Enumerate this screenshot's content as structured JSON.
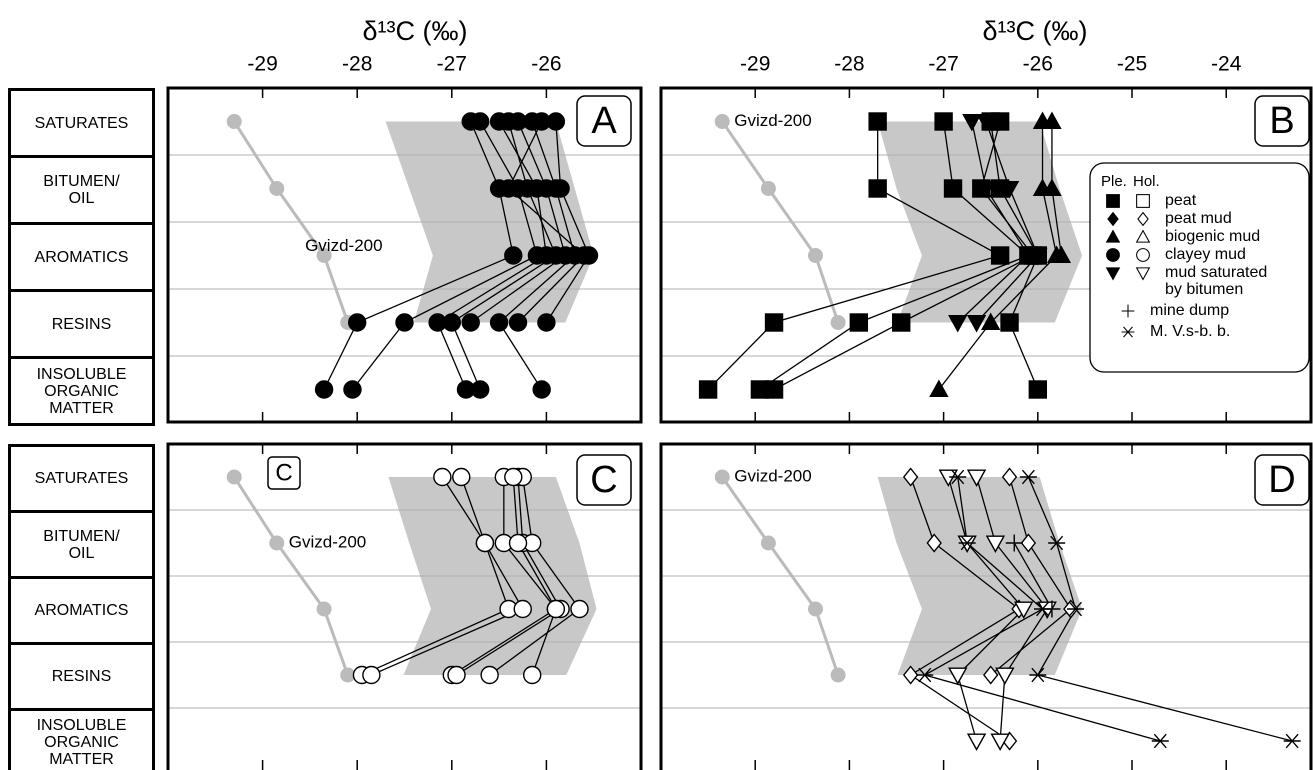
{
  "chart_data": [
    {
      "type": "profile",
      "xlabel": "δ¹³C (‰)",
      "panel_label": "A",
      "grid": true,
      "tick_labels": true,
      "categories": [
        "SATURATES",
        "BITUMEN/\nOIL",
        "AROMATICS",
        "RESINS",
        "INSOLUBLE\nORGANIC\nMATTER"
      ],
      "xlim": [
        -30,
        -25
      ],
      "xticks": [
        -29,
        -28,
        -27,
        -26
      ],
      "color": "#000000",
      "band": {
        "color": "#c8c8c8",
        "min": [
          -27.7,
          -27.45,
          -27.2,
          -27.4,
          null
        ],
        "max": [
          -25.9,
          -25.7,
          -25.5,
          -25.8,
          null
        ]
      },
      "series": [
        {
          "name": "Gvizd-200",
          "color": "#bbbbbb",
          "marker": "circle",
          "filled": true,
          "values": [
            -29.3,
            -28.85,
            -28.35,
            -28.1,
            null
          ]
        },
        {
          "marker": "circle",
          "filled": true,
          "values": [
            -26.8,
            -26.5,
            -26.35,
            -28.0,
            -28.35
          ]
        },
        {
          "marker": "circle",
          "filled": true,
          "values": [
            -26.7,
            -26.3,
            -26.1,
            -27.5,
            -28.05
          ]
        },
        {
          "marker": "circle",
          "filled": true,
          "values": [
            -26.5,
            -26.1,
            -26.0,
            -27.15,
            -26.85
          ]
        },
        {
          "marker": "circle",
          "filled": true,
          "values": [
            -26.4,
            -26.2,
            -25.9,
            -27.0,
            -26.7
          ]
        },
        {
          "marker": "circle",
          "filled": true,
          "values": [
            -26.3,
            -26.0,
            -25.8,
            -26.8,
            null
          ]
        },
        {
          "marker": "circle",
          "filled": true,
          "values": [
            -26.15,
            -25.9,
            -25.7,
            -26.5,
            -26.05
          ]
        },
        {
          "marker": "circle",
          "filled": true,
          "values": [
            -26.05,
            -26.4,
            -25.6,
            -26.3,
            null
          ]
        },
        {
          "marker": "circle",
          "filled": true,
          "values": [
            -25.9,
            -25.85,
            -25.55,
            -26.0,
            null
          ]
        }
      ]
    },
    {
      "type": "profile",
      "xlabel": "δ¹³C (‰)",
      "panel_label": "B",
      "grid": true,
      "tick_labels": true,
      "xlim": [
        -30,
        -23.1
      ],
      "xticks": [
        -29,
        -28,
        -27,
        -26,
        -25,
        -24
      ],
      "color": "#000000",
      "band": {
        "color": "#c8c8c8",
        "min": [
          -27.7,
          -27.5,
          -27.23,
          -27.49,
          null
        ],
        "max": [
          -25.98,
          -25.77,
          -25.53,
          -25.82,
          null
        ]
      },
      "series": [
        {
          "name": "Gvizd-200",
          "color": "#bbbbbb",
          "marker": "circle",
          "filled": true,
          "values": [
            -29.35,
            -28.86,
            -28.36,
            -28.12,
            null
          ]
        },
        {
          "marker": "square",
          "filled": true,
          "values": [
            -27.7,
            -27.7,
            -26.4,
            -28.8,
            -29.5
          ]
        },
        {
          "marker": "square",
          "filled": true,
          "values": [
            -27.0,
            -26.9,
            -26.1,
            -27.9,
            -28.95
          ]
        },
        {
          "marker": "square",
          "filled": true,
          "values": [
            -26.4,
            -26.6,
            -26.05,
            -27.45,
            -28.8
          ]
        },
        {
          "marker": "square",
          "filled": true,
          "values": [
            -26.5,
            -26.4,
            -26.0,
            -26.3,
            -26.0
          ]
        },
        {
          "marker": "triangle",
          "filled": true,
          "values": [
            -25.95,
            -25.95,
            -25.8,
            -26.5,
            -27.05
          ]
        },
        {
          "marker": "triangle",
          "filled": true,
          "values": [
            -25.85,
            -25.85,
            -25.75,
            null,
            null
          ]
        },
        {
          "marker": "triangle-down",
          "filled": true,
          "values": [
            -26.7,
            -26.55,
            -26.1,
            -26.85,
            null
          ]
        },
        {
          "marker": "triangle-down",
          "filled": true,
          "values": [
            -26.55,
            -26.3,
            -26.0,
            -26.65,
            null
          ]
        }
      ],
      "legend": {
        "loc": "right",
        "columns": [
          "Ple.",
          "Hol."
        ],
        "entries": [
          {
            "label": [
              "peat"
            ],
            "marker": "square",
            "fills": [
              "filled",
              "open"
            ]
          },
          {
            "label": [
              "peat mud"
            ],
            "marker": "diamond",
            "fills": [
              "filled",
              "open"
            ]
          },
          {
            "label": [
              "biogenic mud"
            ],
            "marker": "triangle",
            "fills": [
              "filled",
              "open"
            ]
          },
          {
            "label": [
              "clayey mud"
            ],
            "marker": "circle",
            "fills": [
              "filled",
              "open"
            ]
          },
          {
            "label": [
              "mud saturated",
              "by bitumen"
            ],
            "marker": "triangle-down",
            "fills": [
              "filled",
              "open"
            ]
          },
          {
            "label": [
              "mine dump"
            ],
            "marker": "plus",
            "fills": [
              "open"
            ]
          },
          {
            "label": [
              "M. V.s-b. b."
            ],
            "marker": "asterisk",
            "fills": [
              "open"
            ]
          }
        ]
      }
    },
    {
      "type": "profile",
      "panel_label": "C",
      "inset_label": "C",
      "grid": true,
      "tick_labels": false,
      "categories": [
        "SATURATES",
        "BITUMEN/\nOIL",
        "AROMATICS",
        "RESINS",
        "INSOLUBLE\nORGANIC\nMATTER"
      ],
      "xlim": [
        -30,
        -25
      ],
      "xticks": [
        -29,
        -28,
        -27,
        -26
      ],
      "color": "#000000",
      "band": {
        "color": "#c8c8c8",
        "min": [
          -27.67,
          -27.45,
          -27.22,
          -27.51,
          null
        ],
        "max": [
          -25.9,
          -25.65,
          -25.47,
          -25.79,
          null
        ]
      },
      "series": [
        {
          "name": "Gvizd-200",
          "color": "#bbbbbb",
          "marker": "circle",
          "filled": true,
          "values": [
            -29.3,
            -28.85,
            -28.35,
            -28.1,
            null
          ]
        },
        {
          "marker": "circle",
          "filled": false,
          "values": [
            -27.1,
            -26.65,
            -26.4,
            -27.95,
            null
          ]
        },
        {
          "marker": "circle",
          "filled": false,
          "values": [
            -26.9,
            -26.65,
            -26.25,
            -27.85,
            null
          ]
        },
        {
          "marker": "circle",
          "filled": false,
          "values": [
            -26.45,
            -26.45,
            -25.9,
            -27.0,
            null
          ]
        },
        {
          "marker": "circle",
          "filled": false,
          "values": [
            -26.3,
            -26.25,
            -25.85,
            -26.95,
            null
          ]
        },
        {
          "marker": "circle",
          "filled": false,
          "values": [
            -26.25,
            -26.15,
            -25.65,
            -26.6,
            null
          ]
        },
        {
          "marker": "circle",
          "filled": false,
          "values": [
            -26.35,
            -26.3,
            -25.9,
            -26.15,
            null
          ]
        }
      ]
    },
    {
      "type": "profile",
      "panel_label": "D",
      "grid": true,
      "tick_labels": false,
      "xlim": [
        -30,
        -23.1
      ],
      "xticks": [
        -29,
        -28,
        -27,
        -26,
        -25,
        -24
      ],
      "color": "#000000",
      "band": {
        "color": "#c8c8c8",
        "min": [
          -27.7,
          -27.5,
          -27.23,
          -27.49,
          null
        ],
        "max": [
          -25.98,
          -25.77,
          -25.53,
          -25.82,
          null
        ]
      },
      "series": [
        {
          "name": "Gvizd-200",
          "color": "#bbbbbb",
          "marker": "circle",
          "filled": true,
          "values": [
            -29.35,
            -28.86,
            -28.36,
            -28.12,
            null
          ]
        },
        {
          "marker": "diamond",
          "filled": false,
          "values": [
            -27.35,
            -27.1,
            -26.2,
            -27.35,
            -26.3
          ]
        },
        {
          "marker": "diamond",
          "filled": false,
          "values": [
            -26.3,
            -26.1,
            -25.65,
            -26.5,
            null
          ]
        },
        {
          "marker": "triangle-down",
          "filled": false,
          "values": [
            -26.95,
            -26.75,
            -26.15,
            -26.85,
            -26.65
          ]
        },
        {
          "marker": "triangle-down",
          "filled": false,
          "values": [
            -26.65,
            -26.45,
            -25.9,
            -26.35,
            -26.4
          ]
        },
        {
          "marker": "asterisk",
          "filled": false,
          "values": [
            -26.85,
            -26.75,
            -25.95,
            -27.2,
            -24.7
          ]
        },
        {
          "marker": "asterisk",
          "filled": false,
          "values": [
            -26.1,
            -25.8,
            -25.6,
            -26.0,
            -23.3
          ]
        },
        {
          "marker": "plus",
          "filled": false,
          "values": [
            null,
            -26.25,
            -25.85,
            null,
            null
          ]
        }
      ]
    }
  ]
}
